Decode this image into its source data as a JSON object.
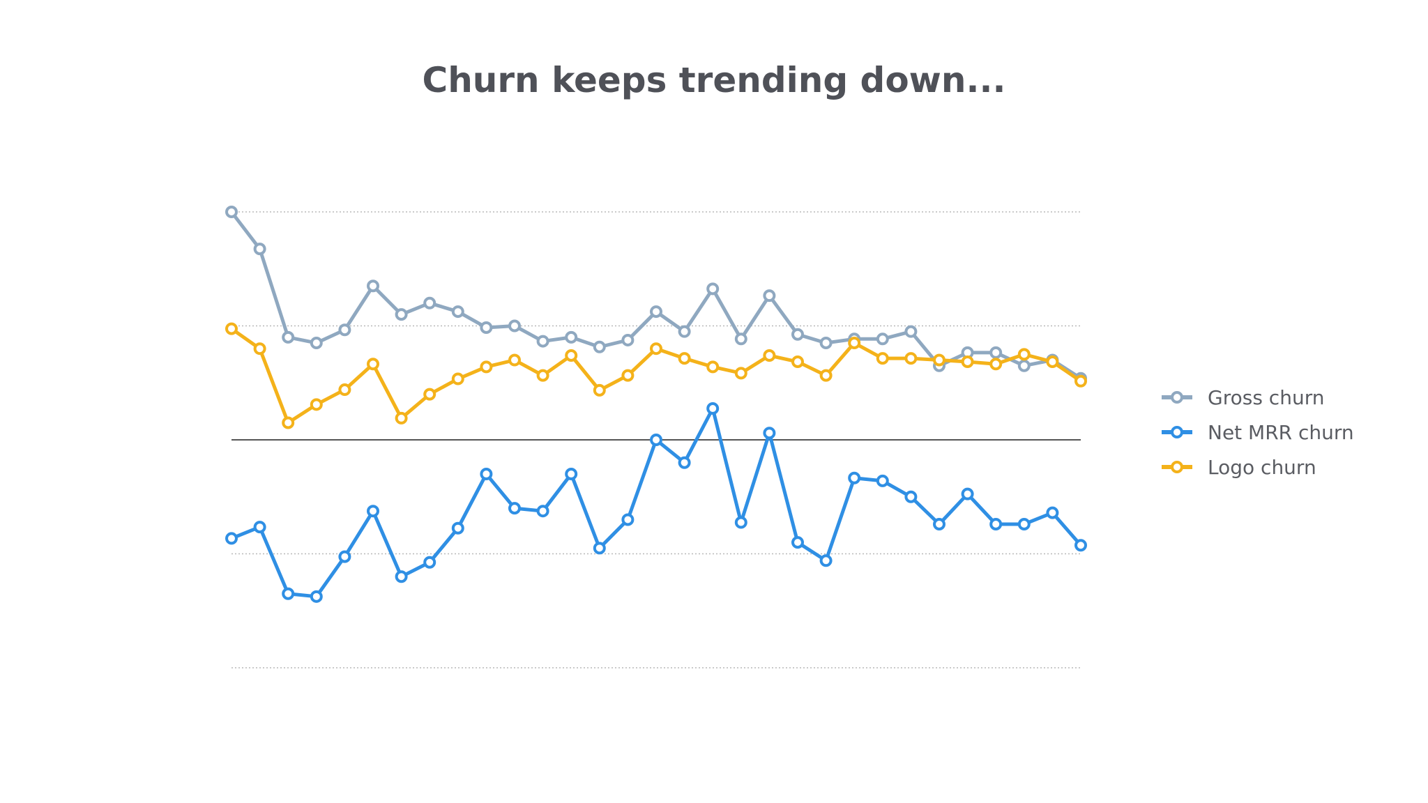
{
  "chart_data": {
    "type": "line",
    "title": "Churn keeps trending down...",
    "xlabel": "",
    "ylabel": "",
    "ylim": [
      -4,
      4
    ],
    "y_gridlines": [
      -4,
      -2,
      2,
      4
    ],
    "zero_line": 0,
    "grid": true,
    "legend_position": "right",
    "x": [
      1,
      2,
      3,
      4,
      5,
      6,
      7,
      8,
      9,
      10,
      11,
      12,
      13,
      14,
      15,
      16,
      17,
      18,
      19,
      20,
      21,
      22,
      23,
      24,
      25,
      26,
      27,
      28,
      29,
      30,
      31
    ],
    "series": [
      {
        "name": "Gross churn",
        "color": "#8fa8c0",
        "values": [
          4.0,
          3.35,
          1.8,
          1.7,
          1.93,
          2.7,
          2.2,
          2.4,
          2.25,
          1.97,
          2.0,
          1.73,
          1.8,
          1.63,
          1.75,
          2.25,
          1.9,
          2.65,
          1.77,
          2.53,
          1.85,
          1.7,
          1.77,
          1.77,
          1.9,
          1.3,
          1.53,
          1.53,
          1.3,
          1.4,
          1.08
        ]
      },
      {
        "name": "Net MRR churn",
        "color": "#2f8fe4",
        "values": [
          -1.73,
          -1.53,
          -2.7,
          -2.75,
          -2.05,
          -1.25,
          -2.4,
          -2.15,
          -1.55,
          -0.6,
          -1.2,
          -1.25,
          -0.6,
          -1.9,
          -1.4,
          0.0,
          -0.4,
          0.55,
          -1.45,
          0.12,
          -1.8,
          -2.12,
          -0.67,
          -0.72,
          -1.0,
          -1.48,
          -0.95,
          -1.48,
          -1.48,
          -1.28,
          -1.85
        ]
      },
      {
        "name": "Logo churn",
        "color": "#f4b21a",
        "values": [
          1.95,
          1.6,
          0.3,
          0.62,
          0.88,
          1.33,
          0.38,
          0.8,
          1.07,
          1.28,
          1.4,
          1.13,
          1.48,
          0.87,
          1.13,
          1.6,
          1.43,
          1.28,
          1.17,
          1.48,
          1.37,
          1.13,
          1.7,
          1.43,
          1.43,
          1.4,
          1.37,
          1.33,
          1.5,
          1.37,
          1.03
        ]
      }
    ]
  }
}
